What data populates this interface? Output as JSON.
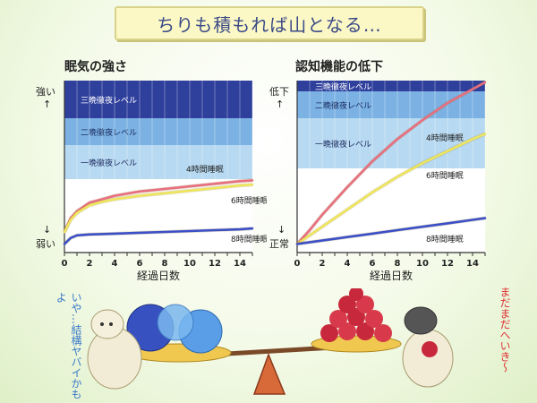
{
  "banner": {
    "text": "ちりも積もれば山となる…"
  },
  "chart_data": [
    {
      "type": "line",
      "title": "眠気の強さ",
      "xlabel": "経過日数",
      "xlim": [
        0,
        15
      ],
      "x_ticks": [
        0,
        2,
        4,
        6,
        8,
        10,
        12,
        14
      ],
      "y_top_label": "強い",
      "y_bottom_label": "弱い",
      "y_top_arrow": "↑",
      "y_bottom_arrow": "↓",
      "bands": [
        {
          "label": "三晩徹夜レベル",
          "color": "#2e3f9c"
        },
        {
          "label": "二晩徹夜レベル",
          "color": "#7bb2e3"
        },
        {
          "label": "一晩徹夜レベル",
          "color": "#b7d9f1"
        }
      ],
      "series": [
        {
          "name": "4時間睡眠",
          "color": "#e86f80",
          "x": [
            0,
            0.5,
            1,
            2,
            3,
            4,
            6,
            8,
            10,
            12,
            14,
            15
          ],
          "y": [
            0.12,
            0.2,
            0.24,
            0.29,
            0.31,
            0.33,
            0.355,
            0.37,
            0.385,
            0.4,
            0.415,
            0.42
          ]
        },
        {
          "name": "6時間睡眠",
          "color": "#eee65c",
          "x": [
            0,
            0.5,
            1,
            2,
            3,
            4,
            6,
            8,
            10,
            12,
            14,
            15
          ],
          "y": [
            0.12,
            0.19,
            0.23,
            0.275,
            0.295,
            0.31,
            0.33,
            0.345,
            0.36,
            0.375,
            0.39,
            0.395
          ]
        },
        {
          "name": "8時間睡眠",
          "color": "#3b50c8",
          "x": [
            0,
            0.5,
            1,
            2,
            4,
            6,
            8,
            10,
            12,
            14,
            15
          ],
          "y": [
            0.05,
            0.085,
            0.1,
            0.105,
            0.11,
            0.115,
            0.12,
            0.125,
            0.13,
            0.135,
            0.14
          ]
        }
      ]
    },
    {
      "type": "line",
      "title": "認知機能の低下",
      "xlabel": "経過日数",
      "xlim": [
        0,
        15
      ],
      "x_ticks": [
        0,
        2,
        4,
        6,
        8,
        10,
        12,
        14
      ],
      "y_top_label": "低下",
      "y_bottom_label": "正常",
      "y_top_arrow": "↑",
      "y_bottom_arrow": "↓",
      "bands": [
        {
          "label": "三晩徹夜レベル",
          "color": "#2e3f9c"
        },
        {
          "label": "二晩徹夜レベル",
          "color": "#7bb2e3"
        },
        {
          "label": "一晩徹夜レベル",
          "color": "#b7d9f1"
        }
      ],
      "series": [
        {
          "name": "4時間睡眠",
          "color": "#e86f80",
          "x": [
            0,
            1,
            2,
            4,
            6,
            8,
            10,
            12,
            14,
            15
          ],
          "y": [
            0.05,
            0.13,
            0.22,
            0.38,
            0.53,
            0.66,
            0.77,
            0.87,
            0.95,
            0.99
          ]
        },
        {
          "name": "6時間睡眠",
          "color": "#eee65c",
          "x": [
            0,
            1,
            2,
            4,
            6,
            8,
            10,
            12,
            14,
            15
          ],
          "y": [
            0.05,
            0.1,
            0.15,
            0.25,
            0.35,
            0.44,
            0.52,
            0.59,
            0.66,
            0.69
          ]
        },
        {
          "name": "8時間睡眠",
          "color": "#3b50c8",
          "x": [
            0,
            2,
            4,
            6,
            8,
            10,
            12,
            14,
            15
          ],
          "y": [
            0.05,
            0.07,
            0.09,
            0.11,
            0.13,
            0.15,
            0.17,
            0.19,
            0.2
          ]
        }
      ]
    }
  ],
  "illustration": {
    "left_speech": "いや…結構ヤバイかもよ",
    "right_speech": "まだまだへいき〜"
  }
}
